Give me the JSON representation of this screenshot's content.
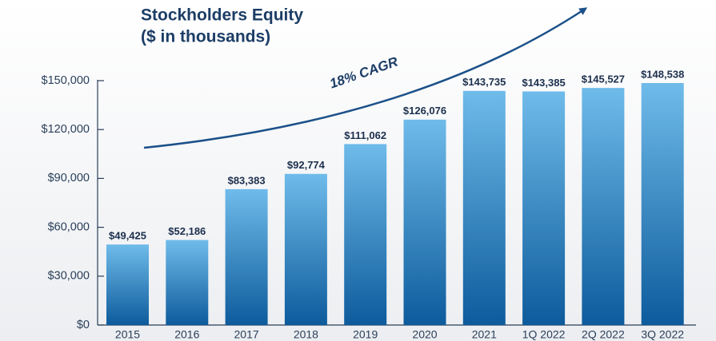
{
  "chart_data": {
    "type": "bar",
    "title": "Stockholders Equity",
    "subtitle": "($ in thousands)",
    "annotation": "18% CAGR",
    "categories": [
      "2015",
      "2016",
      "2017",
      "2018",
      "2019",
      "2020",
      "2021",
      "1Q 2022",
      "2Q 2022",
      "3Q 2022"
    ],
    "values": [
      49425,
      52186,
      83383,
      92774,
      111062,
      126076,
      143735,
      143385,
      145527,
      148538
    ],
    "value_labels": [
      "$49,425",
      "$52,186",
      "$83,383",
      "$92,774",
      "$111,062",
      "$126,076",
      "$143,735",
      "$143,385",
      "$145,527",
      "$148,538"
    ],
    "colors": [
      "#6fbbea",
      "#0d5b9c"
    ],
    "ylim": [
      0,
      150000
    ],
    "yticks": [
      {
        "value": 0,
        "label": "$0"
      },
      {
        "value": 30000,
        "label": "$30,000"
      },
      {
        "value": 60000,
        "label": "$60,000"
      },
      {
        "value": 90000,
        "label": "$90,000"
      },
      {
        "value": 120000,
        "label": "$120,000"
      },
      {
        "value": 150000,
        "label": "$150,000"
      }
    ],
    "grid": false
  }
}
